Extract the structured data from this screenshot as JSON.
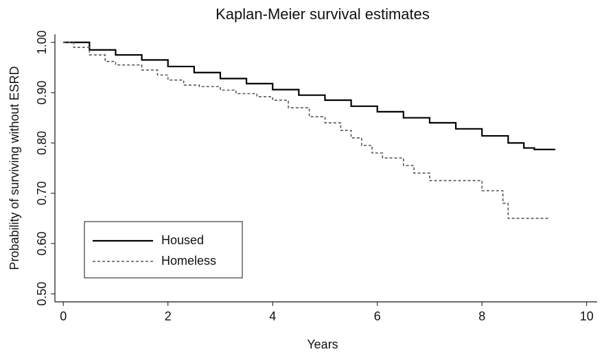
{
  "chart_data": {
    "type": "line",
    "title": "Kaplan-Meier survival estimates",
    "x_label": "Years",
    "y_label": "Probability of surviving without ESRD",
    "step": true,
    "legend": "lower left",
    "xlim": [
      -0.16,
      10.2
    ],
    "xticks": [
      0,
      2,
      4,
      6,
      8,
      10
    ],
    "ylim": [
      0.484,
      1.016
    ],
    "yticks": [
      {
        "value": 0.5,
        "label": "0.50"
      },
      {
        "value": 0.6,
        "label": "0.60"
      },
      {
        "value": 0.7,
        "label": "0.70"
      },
      {
        "value": 0.8,
        "label": "0.80"
      },
      {
        "value": 0.9,
        "label": "0.90"
      },
      {
        "value": 1.0,
        "label": "1.00"
      }
    ],
    "series": [
      {
        "name": "Housed",
        "color": "#000000",
        "dash": "solid",
        "x": [
          0,
          0.5,
          1,
          1.5,
          2,
          2.5,
          3,
          3.5,
          4,
          4.5,
          5,
          5.5,
          6,
          6.5,
          7,
          7.5,
          8,
          8.5,
          8.8,
          9,
          9.4
        ],
        "values": [
          1.0,
          0.985,
          0.975,
          0.965,
          0.952,
          0.94,
          0.928,
          0.918,
          0.906,
          0.895,
          0.885,
          0.873,
          0.862,
          0.85,
          0.84,
          0.828,
          0.814,
          0.8,
          0.79,
          0.787,
          0.787
        ]
      },
      {
        "name": "Homeless",
        "color": "#555555",
        "dash": "dashed",
        "x": [
          0,
          0.2,
          0.5,
          0.8,
          1,
          1.5,
          1.8,
          2,
          2.3,
          2.6,
          3,
          3.3,
          3.7,
          4,
          4.3,
          4.7,
          5,
          5.3,
          5.5,
          5.7,
          5.9,
          6.1,
          6.5,
          6.7,
          7,
          8,
          8.4,
          8.5,
          9.3
        ],
        "values": [
          1.0,
          0.99,
          0.975,
          0.962,
          0.955,
          0.945,
          0.935,
          0.925,
          0.915,
          0.912,
          0.905,
          0.898,
          0.892,
          0.885,
          0.87,
          0.852,
          0.84,
          0.825,
          0.81,
          0.795,
          0.78,
          0.77,
          0.755,
          0.74,
          0.725,
          0.705,
          0.68,
          0.65,
          0.65
        ]
      }
    ]
  }
}
